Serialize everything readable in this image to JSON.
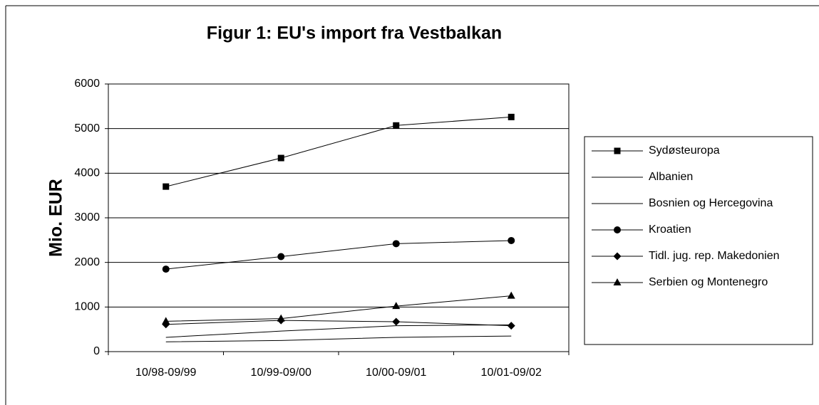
{
  "chart_data": {
    "type": "line",
    "title": "Figur 1: EU's import fra Vestbalkan",
    "y_label": "Mio. EUR",
    "categories": [
      "10/98-09/99",
      "10/99-09/00",
      "10/00-09/01",
      "10/01-09/02"
    ],
    "series": [
      {
        "name": "Sydøsteuropa",
        "color": "#000000",
        "marker": "square",
        "values": [
          3700,
          4340,
          5070,
          5260
        ]
      },
      {
        "name": "Albanien",
        "color": "#000000",
        "marker": null,
        "values": [
          220,
          250,
          320,
          350
        ]
      },
      {
        "name": "Bosnien og Hercegovina",
        "color": "#000000",
        "marker": null,
        "values": [
          320,
          460,
          580,
          600
        ]
      },
      {
        "name": "Kroatien",
        "color": "#000000",
        "marker": "circle",
        "values": [
          1850,
          2130,
          2420,
          2490
        ]
      },
      {
        "name": "Tidl. jug. rep. Makedonien",
        "color": "#000000",
        "marker": "diamond",
        "values": [
          610,
          700,
          670,
          580
        ]
      },
      {
        "name": "Serbien og Montenegro",
        "color": "#000000",
        "marker": "triangle",
        "values": [
          680,
          740,
          1020,
          1250
        ]
      }
    ],
    "ylim": [
      0,
      6000
    ],
    "yticks": [
      0,
      1000,
      2000,
      3000,
      4000,
      5000,
      6000
    ],
    "grid": true,
    "legend": "right"
  }
}
